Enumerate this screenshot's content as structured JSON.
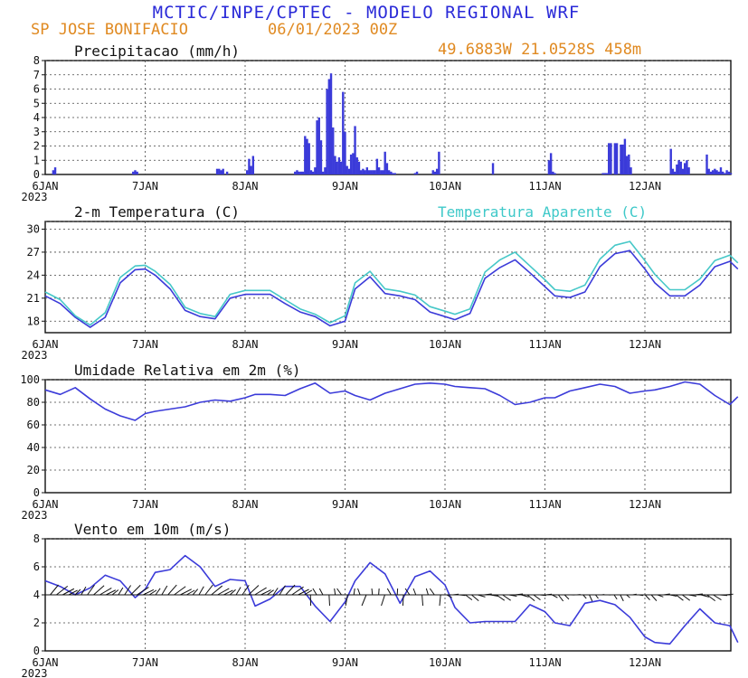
{
  "header": {
    "title": "MCTIC/INPE/CPTEC - MODELO REGIONAL WRF",
    "station": "SP JOSE BONIFACIO",
    "run": "06/01/2023 00Z",
    "location": "49.6883W 21.0528S 458m"
  },
  "colors": {
    "blue": "#3b3bd9",
    "cyan": "#46c8c8",
    "orange": "#e08a22",
    "frame": "#111111"
  },
  "x_axis": {
    "labels": [
      "6JAN",
      "7JAN",
      "8JAN",
      "9JAN",
      "10JAN",
      "11JAN",
      "12JAN"
    ],
    "year": "2023"
  },
  "chart_data": [
    {
      "type": "bar",
      "title": "Precipitacao (mm/h)",
      "ylim": [
        0,
        8
      ],
      "yticks": [
        "0",
        "1",
        "2",
        "3",
        "4",
        "5",
        "6",
        "7",
        "8"
      ],
      "x_unit": "days since 6JAN 00Z",
      "grid": true,
      "x": [
        0.08,
        0.1,
        0.88,
        0.9,
        0.92,
        1.72,
        1.74,
        1.76,
        1.78,
        1.82,
        2.02,
        2.04,
        2.06,
        2.08,
        2.5,
        2.52,
        2.54,
        2.56,
        2.58,
        2.6,
        2.62,
        2.64,
        2.66,
        2.68,
        2.7,
        2.72,
        2.74,
        2.76,
        2.78,
        2.8,
        2.82,
        2.84,
        2.86,
        2.88,
        2.9,
        2.92,
        2.94,
        2.96,
        2.98,
        3.0,
        3.02,
        3.04,
        3.06,
        3.08,
        3.1,
        3.12,
        3.14,
        3.16,
        3.18,
        3.2,
        3.22,
        3.24,
        3.26,
        3.28,
        3.3,
        3.32,
        3.34,
        3.36,
        3.38,
        3.4,
        3.42,
        3.44,
        3.46,
        3.48,
        3.5,
        3.7,
        3.72,
        3.88,
        3.9,
        3.92,
        3.94,
        4.48,
        5.04,
        5.06,
        5.08,
        5.1,
        5.58,
        5.6,
        5.62,
        5.64,
        5.66,
        5.7,
        5.72,
        5.76,
        5.78,
        5.8,
        5.82,
        5.84,
        5.86,
        6.26,
        6.28,
        6.3,
        6.32,
        6.34,
        6.36,
        6.38,
        6.4,
        6.42,
        6.44,
        6.62,
        6.64,
        6.66,
        6.68,
        6.7,
        6.72,
        6.74,
        6.76,
        6.78,
        6.8,
        6.82,
        6.84,
        6.86
      ],
      "values": [
        0.3,
        0.5,
        0.2,
        0.3,
        0.2,
        0.4,
        0.4,
        0.3,
        0.4,
        0.2,
        0.3,
        1.1,
        0.6,
        1.3,
        0.2,
        0.3,
        0.2,
        0.2,
        0.2,
        2.7,
        2.5,
        2.2,
        0.3,
        0.2,
        0.5,
        3.8,
        4.0,
        2.4,
        0.2,
        0.5,
        6.0,
        6.7,
        7.1,
        3.3,
        1.3,
        0.9,
        1.2,
        0.9,
        5.8,
        3.0,
        0.6,
        0.4,
        1.4,
        1.5,
        3.4,
        1.2,
        0.9,
        0.3,
        0.4,
        0.3,
        0.5,
        0.3,
        0.3,
        0.3,
        0.3,
        1.1,
        0.5,
        0.3,
        0.3,
        1.6,
        0.8,
        0.3,
        0.2,
        0.1,
        0.1,
        0.1,
        0.2,
        0.3,
        0.2,
        0.4,
        1.6,
        0.8,
        1.0,
        1.5,
        0.2,
        0.1,
        0.1,
        0.1,
        0.1,
        2.2,
        2.2,
        2.2,
        2.2,
        2.1,
        2.1,
        2.5,
        1.3,
        1.4,
        0.5,
        1.8,
        0.4,
        0.2,
        0.7,
        1.0,
        0.9,
        0.4,
        0.8,
        1.0,
        0.5,
        1.4,
        0.4,
        0.2,
        0.3,
        0.4,
        0.3,
        0.2,
        0.5,
        0.2,
        0.1,
        0.3,
        0.2,
        0.1
      ]
    },
    {
      "type": "line",
      "title": "2-m Temperatura (C)",
      "ylim": [
        16.5,
        31
      ],
      "yticks": [
        "18",
        "21",
        "24",
        "27",
        "30"
      ],
      "x_unit": "days since 6JAN 00Z",
      "series": [
        {
          "name": "2-m Temperatura (C)",
          "x": [
            0,
            0.15,
            0.3,
            0.45,
            0.6,
            0.75,
            0.9,
            1.0,
            1.1,
            1.25,
            1.4,
            1.55,
            1.7,
            1.85,
            2.0,
            2.1,
            2.25,
            2.4,
            2.55,
            2.7,
            2.85,
            3.0,
            3.1,
            3.25,
            3.4,
            3.55,
            3.7,
            3.85,
            4.0,
            4.1,
            4.25,
            4.4,
            4.55,
            4.7,
            4.85,
            5.0,
            5.1,
            5.25,
            5.4,
            5.55,
            5.7,
            5.85,
            6.0,
            6.1,
            6.25,
            6.4,
            6.55,
            6.7,
            6.85,
            6.93
          ],
          "values": [
            21.3,
            20.3,
            18.5,
            17.2,
            18.5,
            23.0,
            24.7,
            24.8,
            24.0,
            22.2,
            19.4,
            18.6,
            18.3,
            21.0,
            21.5,
            21.5,
            21.5,
            20.3,
            19.2,
            18.6,
            17.4,
            18.0,
            22.2,
            23.8,
            21.6,
            21.3,
            20.8,
            19.2,
            18.6,
            18.2,
            19.0,
            23.6,
            25.0,
            26.0,
            24.3,
            22.5,
            21.3,
            21.1,
            21.8,
            25.1,
            26.8,
            27.2,
            24.8,
            23.0,
            21.3,
            21.3,
            22.7,
            25.1,
            25.8,
            24.8
          ]
        },
        {
          "name": "Temperatura Aparente (C)",
          "x": [
            0,
            0.15,
            0.3,
            0.45,
            0.6,
            0.75,
            0.9,
            1.0,
            1.1,
            1.25,
            1.4,
            1.55,
            1.7,
            1.85,
            2.0,
            2.1,
            2.25,
            2.4,
            2.55,
            2.7,
            2.85,
            3.0,
            3.1,
            3.25,
            3.4,
            3.55,
            3.7,
            3.85,
            4.0,
            4.1,
            4.25,
            4.4,
            4.55,
            4.7,
            4.85,
            5.0,
            5.1,
            5.25,
            5.4,
            5.55,
            5.7,
            5.85,
            6.0,
            6.1,
            6.25,
            6.4,
            6.55,
            6.7,
            6.85,
            6.93
          ],
          "values": [
            21.8,
            20.8,
            18.7,
            17.5,
            19.1,
            23.7,
            25.2,
            25.3,
            24.5,
            22.8,
            19.8,
            19.0,
            18.6,
            21.5,
            22.0,
            22.0,
            22.0,
            20.8,
            19.6,
            18.9,
            17.8,
            18.7,
            23.0,
            24.5,
            22.2,
            21.9,
            21.4,
            19.9,
            19.3,
            18.9,
            19.6,
            24.4,
            26.0,
            27.0,
            25.2,
            23.4,
            22.1,
            21.9,
            22.7,
            26.1,
            27.9,
            28.4,
            25.9,
            24.1,
            22.1,
            22.1,
            23.5,
            25.9,
            26.6,
            25.6
          ]
        }
      ]
    },
    {
      "type": "line",
      "title": "Umidade Relativa em 2m (%)",
      "ylim": [
        0,
        100
      ],
      "yticks": [
        "0",
        "20",
        "40",
        "60",
        "80",
        "100"
      ],
      "x_unit": "days since 6JAN 00Z",
      "series": [
        {
          "name": "Umidade Relativa em 2m (%)",
          "x": [
            0,
            0.15,
            0.3,
            0.45,
            0.6,
            0.75,
            0.9,
            1.0,
            1.1,
            1.25,
            1.4,
            1.55,
            1.7,
            1.85,
            2.0,
            2.1,
            2.25,
            2.4,
            2.55,
            2.7,
            2.85,
            3.0,
            3.1,
            3.25,
            3.4,
            3.55,
            3.7,
            3.85,
            4.0,
            4.1,
            4.25,
            4.4,
            4.55,
            4.7,
            4.85,
            5.0,
            5.1,
            5.25,
            5.4,
            5.55,
            5.7,
            5.85,
            6.0,
            6.1,
            6.25,
            6.4,
            6.55,
            6.7,
            6.85,
            6.93
          ],
          "values": [
            91,
            87,
            93,
            83,
            74,
            68,
            64,
            70,
            72,
            74,
            76,
            80,
            82,
            81,
            84,
            87,
            87,
            86,
            92,
            97,
            88,
            90,
            86,
            82,
            88,
            92,
            96,
            97,
            96,
            94,
            93,
            92,
            86,
            78,
            80,
            84,
            84,
            90,
            93,
            96,
            94,
            88,
            90,
            91,
            94,
            98,
            96,
            86,
            78,
            85
          ]
        }
      ]
    },
    {
      "type": "line",
      "title": "Vento em 10m (m/s)",
      "ylim": [
        0,
        8
      ],
      "yticks": [
        "0",
        "2",
        "4",
        "6",
        "8"
      ],
      "x_unit": "days since 6JAN 00Z",
      "wind_barbs": true,
      "series": [
        {
          "name": "Vento em 10m (m/s)",
          "x": [
            0,
            0.15,
            0.3,
            0.45,
            0.6,
            0.75,
            0.9,
            1.0,
            1.1,
            1.25,
            1.4,
            1.55,
            1.7,
            1.85,
            2.0,
            2.1,
            2.25,
            2.4,
            2.55,
            2.7,
            2.85,
            3.0,
            3.1,
            3.25,
            3.4,
            3.55,
            3.7,
            3.85,
            4.0,
            4.1,
            4.25,
            4.4,
            4.55,
            4.7,
            4.85,
            5.0,
            5.1,
            5.25,
            5.4,
            5.55,
            5.7,
            5.85,
            6.0,
            6.1,
            6.25,
            6.4,
            6.55,
            6.7,
            6.85,
            6.93
          ],
          "values": [
            5.0,
            4.6,
            4.0,
            4.5,
            5.4,
            5.0,
            3.8,
            4.4,
            5.6,
            5.8,
            6.8,
            6.0,
            4.6,
            5.1,
            5.0,
            3.2,
            3.7,
            4.6,
            4.6,
            3.2,
            2.1,
            3.5,
            5.0,
            6.3,
            5.5,
            3.4,
            5.3,
            5.7,
            4.7,
            3.1,
            2.0,
            2.1,
            2.1,
            2.1,
            3.3,
            2.8,
            2.0,
            1.8,
            3.4,
            3.6,
            3.3,
            2.4,
            1.0,
            0.6,
            0.5,
            1.8,
            3.0,
            2.0,
            1.8,
            0.6
          ]
        }
      ]
    }
  ]
}
